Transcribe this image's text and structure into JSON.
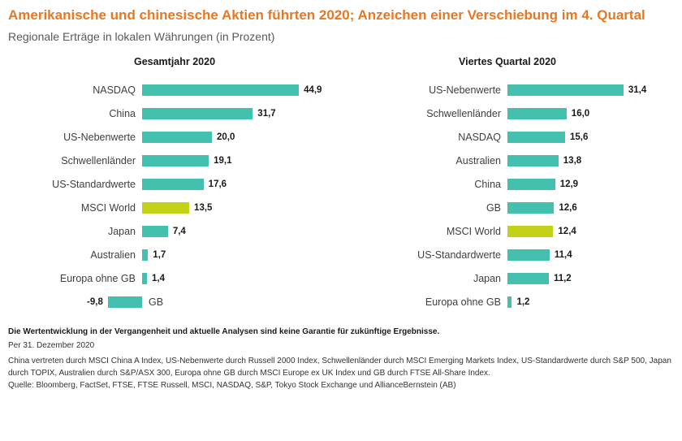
{
  "header": {
    "title": "Amerikanische und chinesische Aktien führten 2020; Anzeichen einer Verschiebung im 4. Quartal",
    "subtitle": "Regionale Erträge in lokalen Währungen (in Prozent)"
  },
  "colors": {
    "title": "#e87722",
    "bar": "#43c1ae",
    "highlight_bar": "#c3d117",
    "subtitle_text": "#58595b"
  },
  "chart_data": [
    {
      "type": "bar",
      "orientation": "horizontal",
      "title": "Gesamtjahr 2020",
      "unit": "percent",
      "grid": false,
      "legend": false,
      "xlim": [
        -12,
        50
      ],
      "categories": [
        "NASDAQ",
        "China",
        "US-Nebenwerte",
        "Schwellenländer",
        "US-Standardwerte",
        "MSCI World",
        "Japan",
        "Australien",
        "Europa ohne GB",
        "GB"
      ],
      "values": [
        44.9,
        31.7,
        20.0,
        19.1,
        17.6,
        13.5,
        7.4,
        1.7,
        1.4,
        -9.8
      ],
      "value_labels": [
        "44,9",
        "31,7",
        "20,0",
        "19,1",
        "17,6",
        "13,5",
        "7,4",
        "1,7",
        "1,4",
        "-9,8"
      ],
      "highlight_category": "MSCI World"
    },
    {
      "type": "bar",
      "orientation": "horizontal",
      "title": "Viertes Quartal 2020",
      "unit": "percent",
      "grid": false,
      "legend": false,
      "xlim": [
        0,
        35
      ],
      "categories": [
        "US-Nebenwerte",
        "Schwellenländer",
        "NASDAQ",
        "Australien",
        "China",
        "GB",
        "MSCI World",
        "US-Standardwerte",
        "Japan",
        "Europa ohne GB"
      ],
      "values": [
        31.4,
        16.0,
        15.6,
        13.8,
        12.9,
        12.6,
        12.4,
        11.4,
        11.2,
        1.2
      ],
      "value_labels": [
        "31,4",
        "16,0",
        "15,6",
        "13,8",
        "12,9",
        "12,6",
        "12,4",
        "11,4",
        "11,2",
        "1,2"
      ],
      "highlight_category": "MSCI World"
    }
  ],
  "footer": {
    "disclaimer": "Die Wertentwicklung in der Vergangenheit und aktuelle Analysen sind keine Garantie für zukünftige Ergebnisse.",
    "as_of": "Per 31. Dezember 2020",
    "index_note": "China vertreten durch MSCI China A Index, US-Nebenwerte durch Russell 2000 Index, Schwellenländer durch MSCI Emerging Markets Index, US-Standardwerte durch S&P 500, Japan durch TOPIX, Australien durch S&P/ASX 300, Europa ohne GB durch MSCI Europe ex UK Index und GB durch FTSE All-Share Index.",
    "source": "Quelle: Bloomberg, FactSet, FTSE, FTSE Russell, MSCI, NASDAQ, S&P, Tokyo Stock Exchange und AllianceBernstein (AB)"
  }
}
